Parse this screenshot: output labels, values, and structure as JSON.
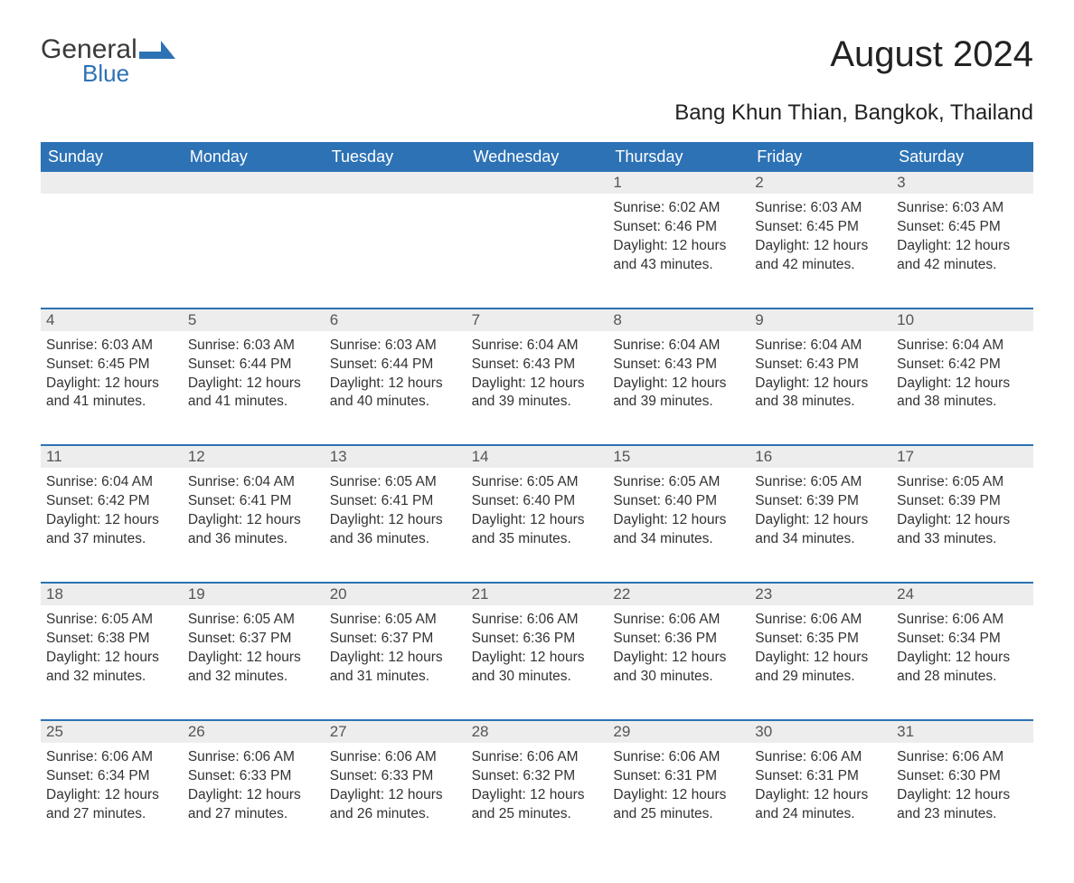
{
  "logo": {
    "word1": "General",
    "word2": "Blue"
  },
  "title": "August 2024",
  "subtitle": "Bang Khun Thian, Bangkok, Thailand",
  "colors": {
    "header_bg": "#2d72b5",
    "header_fg": "#ffffff",
    "daynum_bg": "#ededed",
    "daynum_border": "#2d72b5",
    "text": "#333333",
    "background": "#ffffff"
  },
  "day_names": [
    "Sunday",
    "Monday",
    "Tuesday",
    "Wednesday",
    "Thursday",
    "Friday",
    "Saturday"
  ],
  "weeks": [
    [
      null,
      null,
      null,
      null,
      {
        "n": "1",
        "sunrise": "6:02 AM",
        "sunset": "6:46 PM",
        "daylight": "12 hours and 43 minutes."
      },
      {
        "n": "2",
        "sunrise": "6:03 AM",
        "sunset": "6:45 PM",
        "daylight": "12 hours and 42 minutes."
      },
      {
        "n": "3",
        "sunrise": "6:03 AM",
        "sunset": "6:45 PM",
        "daylight": "12 hours and 42 minutes."
      }
    ],
    [
      {
        "n": "4",
        "sunrise": "6:03 AM",
        "sunset": "6:45 PM",
        "daylight": "12 hours and 41 minutes."
      },
      {
        "n": "5",
        "sunrise": "6:03 AM",
        "sunset": "6:44 PM",
        "daylight": "12 hours and 41 minutes."
      },
      {
        "n": "6",
        "sunrise": "6:03 AM",
        "sunset": "6:44 PM",
        "daylight": "12 hours and 40 minutes."
      },
      {
        "n": "7",
        "sunrise": "6:04 AM",
        "sunset": "6:43 PM",
        "daylight": "12 hours and 39 minutes."
      },
      {
        "n": "8",
        "sunrise": "6:04 AM",
        "sunset": "6:43 PM",
        "daylight": "12 hours and 39 minutes."
      },
      {
        "n": "9",
        "sunrise": "6:04 AM",
        "sunset": "6:43 PM",
        "daylight": "12 hours and 38 minutes."
      },
      {
        "n": "10",
        "sunrise": "6:04 AM",
        "sunset": "6:42 PM",
        "daylight": "12 hours and 38 minutes."
      }
    ],
    [
      {
        "n": "11",
        "sunrise": "6:04 AM",
        "sunset": "6:42 PM",
        "daylight": "12 hours and 37 minutes."
      },
      {
        "n": "12",
        "sunrise": "6:04 AM",
        "sunset": "6:41 PM",
        "daylight": "12 hours and 36 minutes."
      },
      {
        "n": "13",
        "sunrise": "6:05 AM",
        "sunset": "6:41 PM",
        "daylight": "12 hours and 36 minutes."
      },
      {
        "n": "14",
        "sunrise": "6:05 AM",
        "sunset": "6:40 PM",
        "daylight": "12 hours and 35 minutes."
      },
      {
        "n": "15",
        "sunrise": "6:05 AM",
        "sunset": "6:40 PM",
        "daylight": "12 hours and 34 minutes."
      },
      {
        "n": "16",
        "sunrise": "6:05 AM",
        "sunset": "6:39 PM",
        "daylight": "12 hours and 34 minutes."
      },
      {
        "n": "17",
        "sunrise": "6:05 AM",
        "sunset": "6:39 PM",
        "daylight": "12 hours and 33 minutes."
      }
    ],
    [
      {
        "n": "18",
        "sunrise": "6:05 AM",
        "sunset": "6:38 PM",
        "daylight": "12 hours and 32 minutes."
      },
      {
        "n": "19",
        "sunrise": "6:05 AM",
        "sunset": "6:37 PM",
        "daylight": "12 hours and 32 minutes."
      },
      {
        "n": "20",
        "sunrise": "6:05 AM",
        "sunset": "6:37 PM",
        "daylight": "12 hours and 31 minutes."
      },
      {
        "n": "21",
        "sunrise": "6:06 AM",
        "sunset": "6:36 PM",
        "daylight": "12 hours and 30 minutes."
      },
      {
        "n": "22",
        "sunrise": "6:06 AM",
        "sunset": "6:36 PM",
        "daylight": "12 hours and 30 minutes."
      },
      {
        "n": "23",
        "sunrise": "6:06 AM",
        "sunset": "6:35 PM",
        "daylight": "12 hours and 29 minutes."
      },
      {
        "n": "24",
        "sunrise": "6:06 AM",
        "sunset": "6:34 PM",
        "daylight": "12 hours and 28 minutes."
      }
    ],
    [
      {
        "n": "25",
        "sunrise": "6:06 AM",
        "sunset": "6:34 PM",
        "daylight": "12 hours and 27 minutes."
      },
      {
        "n": "26",
        "sunrise": "6:06 AM",
        "sunset": "6:33 PM",
        "daylight": "12 hours and 27 minutes."
      },
      {
        "n": "27",
        "sunrise": "6:06 AM",
        "sunset": "6:33 PM",
        "daylight": "12 hours and 26 minutes."
      },
      {
        "n": "28",
        "sunrise": "6:06 AM",
        "sunset": "6:32 PM",
        "daylight": "12 hours and 25 minutes."
      },
      {
        "n": "29",
        "sunrise": "6:06 AM",
        "sunset": "6:31 PM",
        "daylight": "12 hours and 25 minutes."
      },
      {
        "n": "30",
        "sunrise": "6:06 AM",
        "sunset": "6:31 PM",
        "daylight": "12 hours and 24 minutes."
      },
      {
        "n": "31",
        "sunrise": "6:06 AM",
        "sunset": "6:30 PM",
        "daylight": "12 hours and 23 minutes."
      }
    ]
  ],
  "labels": {
    "sunrise": "Sunrise: ",
    "sunset": "Sunset: ",
    "daylight": "Daylight: "
  }
}
